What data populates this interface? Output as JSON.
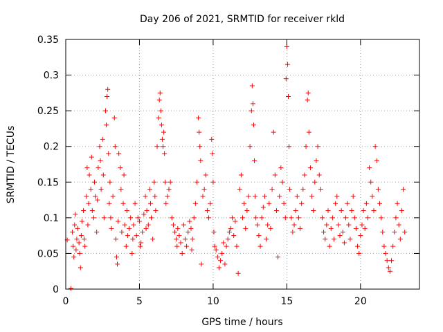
{
  "chart_data": {
    "type": "scatter",
    "title": "Day 206 of 2021, SRMTID for receiver rkld",
    "xlabel": "GPS time / hours",
    "ylabel": "SRMTID / TECUs",
    "xlim": [
      0,
      24
    ],
    "ylim": [
      0,
      0.35
    ],
    "x_ticks": [
      0,
      5,
      10,
      15,
      20
    ],
    "y_ticks": [
      0,
      0.05,
      0.1,
      0.15,
      0.2,
      0.25,
      0.3,
      0.35
    ],
    "x_tick_labels": [
      "0",
      "5",
      "10",
      "15",
      "20"
    ],
    "y_tick_labels": [
      "0",
      "0.05",
      "0.1",
      "0.15",
      "0.2",
      "0.25",
      "0.3",
      "0.35"
    ],
    "grid": true,
    "marker": "plus",
    "color": "#ff0000",
    "series": [
      {
        "name": "SRMTID",
        "points": [
          [
            0.1,
            0.069
          ],
          [
            0.35,
            0.001
          ],
          [
            0.45,
            0.08
          ],
          [
            0.5,
            0.06
          ],
          [
            0.55,
            0.045
          ],
          [
            0.6,
            0.09
          ],
          [
            0.65,
            0.105
          ],
          [
            0.7,
            0.055
          ],
          [
            0.75,
            0.07
          ],
          [
            0.8,
            0.085
          ],
          [
            0.9,
            0.065
          ],
          [
            0.95,
            0.05
          ],
          [
            1.0,
            0.03
          ],
          [
            1.05,
            0.075
          ],
          [
            1.1,
            0.095
          ],
          [
            1.2,
            0.11
          ],
          [
            1.25,
            0.07
          ],
          [
            1.3,
            0.06
          ],
          [
            1.4,
            0.13
          ],
          [
            1.45,
            0.17
          ],
          [
            1.5,
            0.09
          ],
          [
            1.55,
            0.12
          ],
          [
            1.6,
            0.16
          ],
          [
            1.7,
            0.14
          ],
          [
            1.75,
            0.185
          ],
          [
            1.8,
            0.11
          ],
          [
            1.9,
            0.1
          ],
          [
            1.95,
            0.15
          ],
          [
            2.0,
            0.13
          ],
          [
            2.1,
            0.08
          ],
          [
            2.15,
            0.125
          ],
          [
            2.2,
            0.17
          ],
          [
            2.3,
            0.2
          ],
          [
            2.35,
            0.18
          ],
          [
            2.4,
            0.14
          ],
          [
            2.5,
            0.21
          ],
          [
            2.55,
            0.16
          ],
          [
            2.6,
            0.1
          ],
          [
            2.7,
            0.25
          ],
          [
            2.75,
            0.23
          ],
          [
            2.8,
            0.27
          ],
          [
            2.85,
            0.28
          ],
          [
            2.9,
            0.19
          ],
          [
            2.95,
            0.12
          ],
          [
            3.0,
            0.15
          ],
          [
            3.05,
            0.1
          ],
          [
            3.1,
            0.085
          ],
          [
            3.2,
            0.13
          ],
          [
            3.3,
            0.24
          ],
          [
            3.35,
            0.2
          ],
          [
            3.4,
            0.07
          ],
          [
            3.45,
            0.045
          ],
          [
            3.5,
            0.035
          ],
          [
            3.55,
            0.095
          ],
          [
            3.6,
            0.19
          ],
          [
            3.7,
            0.17
          ],
          [
            3.75,
            0.14
          ],
          [
            3.8,
            0.08
          ],
          [
            3.9,
            0.12
          ],
          [
            3.95,
            0.16
          ],
          [
            4.0,
            0.09
          ],
          [
            4.1,
            0.06
          ],
          [
            4.15,
            0.11
          ],
          [
            4.2,
            0.075
          ],
          [
            4.3,
            0.085
          ],
          [
            4.4,
            0.1
          ],
          [
            4.5,
            0.05
          ],
          [
            4.55,
            0.07
          ],
          [
            4.6,
            0.09
          ],
          [
            4.7,
            0.12
          ],
          [
            4.8,
            0.075
          ],
          [
            4.9,
            0.1
          ],
          [
            5.0,
            0.095
          ],
          [
            5.05,
            0.06
          ],
          [
            5.1,
            0.065
          ],
          [
            5.2,
            0.08
          ],
          [
            5.3,
            0.105
          ],
          [
            5.4,
            0.13
          ],
          [
            5.45,
            0.085
          ],
          [
            5.5,
            0.11
          ],
          [
            5.6,
            0.09
          ],
          [
            5.7,
            0.14
          ],
          [
            5.75,
            0.12
          ],
          [
            5.8,
            0.1
          ],
          [
            5.9,
            0.07
          ],
          [
            6.0,
            0.15
          ],
          [
            6.05,
            0.13
          ],
          [
            6.1,
            0.11
          ],
          [
            6.2,
            0.2
          ],
          [
            6.3,
            0.24
          ],
          [
            6.35,
            0.265
          ],
          [
            6.4,
            0.275
          ],
          [
            6.45,
            0.25
          ],
          [
            6.5,
            0.23
          ],
          [
            6.55,
            0.21
          ],
          [
            6.6,
            0.2
          ],
          [
            6.65,
            0.22
          ],
          [
            6.7,
            0.19
          ],
          [
            6.75,
            0.15
          ],
          [
            6.8,
            0.12
          ],
          [
            6.9,
            0.13
          ],
          [
            7.0,
            0.14
          ],
          [
            7.1,
            0.15
          ],
          [
            7.2,
            0.1
          ],
          [
            7.3,
            0.09
          ],
          [
            7.4,
            0.08
          ],
          [
            7.5,
            0.07
          ],
          [
            7.55,
            0.06
          ],
          [
            7.6,
            0.085
          ],
          [
            7.7,
            0.075
          ],
          [
            7.8,
            0.065
          ],
          [
            7.9,
            0.05
          ],
          [
            8.0,
            0.09
          ],
          [
            8.1,
            0.07
          ],
          [
            8.2,
            0.06
          ],
          [
            8.3,
            0.08
          ],
          [
            8.4,
            0.095
          ],
          [
            8.5,
            0.085
          ],
          [
            8.55,
            0.055
          ],
          [
            8.6,
            0.07
          ],
          [
            8.7,
            0.1
          ],
          [
            8.8,
            0.12
          ],
          [
            8.9,
            0.15
          ],
          [
            9.0,
            0.24
          ],
          [
            9.05,
            0.22
          ],
          [
            9.1,
            0.2
          ],
          [
            9.15,
            0.18
          ],
          [
            9.2,
            0.035
          ],
          [
            9.3,
            0.13
          ],
          [
            9.4,
            0.14
          ],
          [
            9.5,
            0.16
          ],
          [
            9.6,
            0.11
          ],
          [
            9.7,
            0.1
          ],
          [
            9.8,
            0.12
          ],
          [
            9.9,
            0.21
          ],
          [
            9.95,
            0.19
          ],
          [
            10.0,
            0.15
          ],
          [
            10.05,
            0.08
          ],
          [
            10.1,
            0.06
          ],
          [
            10.2,
            0.055
          ],
          [
            10.3,
            0.045
          ],
          [
            10.4,
            0.03
          ],
          [
            10.5,
            0.04
          ],
          [
            10.6,
            0.05
          ],
          [
            10.7,
            0.065
          ],
          [
            10.8,
            0.035
          ],
          [
            10.9,
            0.06
          ],
          [
            11.0,
            0.07
          ],
          [
            11.1,
            0.08
          ],
          [
            11.2,
            0.085
          ],
          [
            11.3,
            0.1
          ],
          [
            11.4,
            0.075
          ],
          [
            11.5,
            0.095
          ],
          [
            11.6,
            0.06
          ],
          [
            11.7,
            0.022
          ],
          [
            11.8,
            0.14
          ],
          [
            11.9,
            0.16
          ],
          [
            12.0,
            0.1
          ],
          [
            12.1,
            0.12
          ],
          [
            12.2,
            0.085
          ],
          [
            12.3,
            0.11
          ],
          [
            12.4,
            0.13
          ],
          [
            12.5,
            0.2
          ],
          [
            12.6,
            0.25
          ],
          [
            12.65,
            0.285
          ],
          [
            12.7,
            0.26
          ],
          [
            12.75,
            0.23
          ],
          [
            12.8,
            0.18
          ],
          [
            12.85,
            0.13
          ],
          [
            12.9,
            0.1
          ],
          [
            13.0,
            0.09
          ],
          [
            13.1,
            0.075
          ],
          [
            13.2,
            0.06
          ],
          [
            13.3,
            0.1
          ],
          [
            13.4,
            0.115
          ],
          [
            13.5,
            0.13
          ],
          [
            13.6,
            0.07
          ],
          [
            13.7,
            0.09
          ],
          [
            13.8,
            0.12
          ],
          [
            13.9,
            0.085
          ],
          [
            14.0,
            0.14
          ],
          [
            14.1,
            0.22
          ],
          [
            14.2,
            0.16
          ],
          [
            14.3,
            0.11
          ],
          [
            14.4,
            0.045
          ],
          [
            14.5,
            0.13
          ],
          [
            14.6,
            0.17
          ],
          [
            14.7,
            0.15
          ],
          [
            14.8,
            0.12
          ],
          [
            14.9,
            0.1
          ],
          [
            14.95,
            0.295
          ],
          [
            15.0,
            0.34
          ],
          [
            15.05,
            0.315
          ],
          [
            15.1,
            0.27
          ],
          [
            15.15,
            0.2
          ],
          [
            15.2,
            0.14
          ],
          [
            15.3,
            0.1
          ],
          [
            15.4,
            0.08
          ],
          [
            15.5,
            0.09
          ],
          [
            15.6,
            0.11
          ],
          [
            15.7,
            0.13
          ],
          [
            15.8,
            0.1
          ],
          [
            15.9,
            0.085
          ],
          [
            16.0,
            0.12
          ],
          [
            16.1,
            0.14
          ],
          [
            16.2,
            0.16
          ],
          [
            16.3,
            0.2
          ],
          [
            16.4,
            0.265
          ],
          [
            16.45,
            0.275
          ],
          [
            16.5,
            0.22
          ],
          [
            16.6,
            0.17
          ],
          [
            16.7,
            0.13
          ],
          [
            16.8,
            0.11
          ],
          [
            16.9,
            0.15
          ],
          [
            17.0,
            0.18
          ],
          [
            17.1,
            0.2
          ],
          [
            17.2,
            0.16
          ],
          [
            17.3,
            0.14
          ],
          [
            17.4,
            0.1
          ],
          [
            17.5,
            0.08
          ],
          [
            17.6,
            0.07
          ],
          [
            17.7,
            0.09
          ],
          [
            17.8,
            0.11
          ],
          [
            17.9,
            0.06
          ],
          [
            18.0,
            0.085
          ],
          [
            18.1,
            0.1
          ],
          [
            18.2,
            0.07
          ],
          [
            18.3,
            0.12
          ],
          [
            18.4,
            0.13
          ],
          [
            18.5,
            0.09
          ],
          [
            18.6,
            0.075
          ],
          [
            18.7,
            0.11
          ],
          [
            18.8,
            0.08
          ],
          [
            18.9,
            0.065
          ],
          [
            19.0,
            0.1
          ],
          [
            19.1,
            0.12
          ],
          [
            19.2,
            0.09
          ],
          [
            19.3,
            0.07
          ],
          [
            19.4,
            0.11
          ],
          [
            19.5,
            0.13
          ],
          [
            19.6,
            0.1
          ],
          [
            19.7,
            0.085
          ],
          [
            19.8,
            0.06
          ],
          [
            19.9,
            0.05
          ],
          [
            20.0,
            0.075
          ],
          [
            20.1,
            0.09
          ],
          [
            20.2,
            0.11
          ],
          [
            20.3,
            0.085
          ],
          [
            20.4,
            0.12
          ],
          [
            20.5,
            0.1
          ],
          [
            20.6,
            0.17
          ],
          [
            20.7,
            0.15
          ],
          [
            20.8,
            0.13
          ],
          [
            20.9,
            0.11
          ],
          [
            21.0,
            0.2
          ],
          [
            21.1,
            0.18
          ],
          [
            21.2,
            0.14
          ],
          [
            21.3,
            0.12
          ],
          [
            21.4,
            0.1
          ],
          [
            21.5,
            0.08
          ],
          [
            21.6,
            0.06
          ],
          [
            21.7,
            0.05
          ],
          [
            21.8,
            0.04
          ],
          [
            21.9,
            0.03
          ],
          [
            22.0,
            0.025
          ],
          [
            22.1,
            0.04
          ],
          [
            22.2,
            0.06
          ],
          [
            22.3,
            0.08
          ],
          [
            22.4,
            0.1
          ],
          [
            22.5,
            0.12
          ],
          [
            22.6,
            0.09
          ],
          [
            22.7,
            0.07
          ],
          [
            22.8,
            0.11
          ],
          [
            22.9,
            0.14
          ],
          [
            23.0,
            0.08
          ]
        ]
      }
    ]
  }
}
